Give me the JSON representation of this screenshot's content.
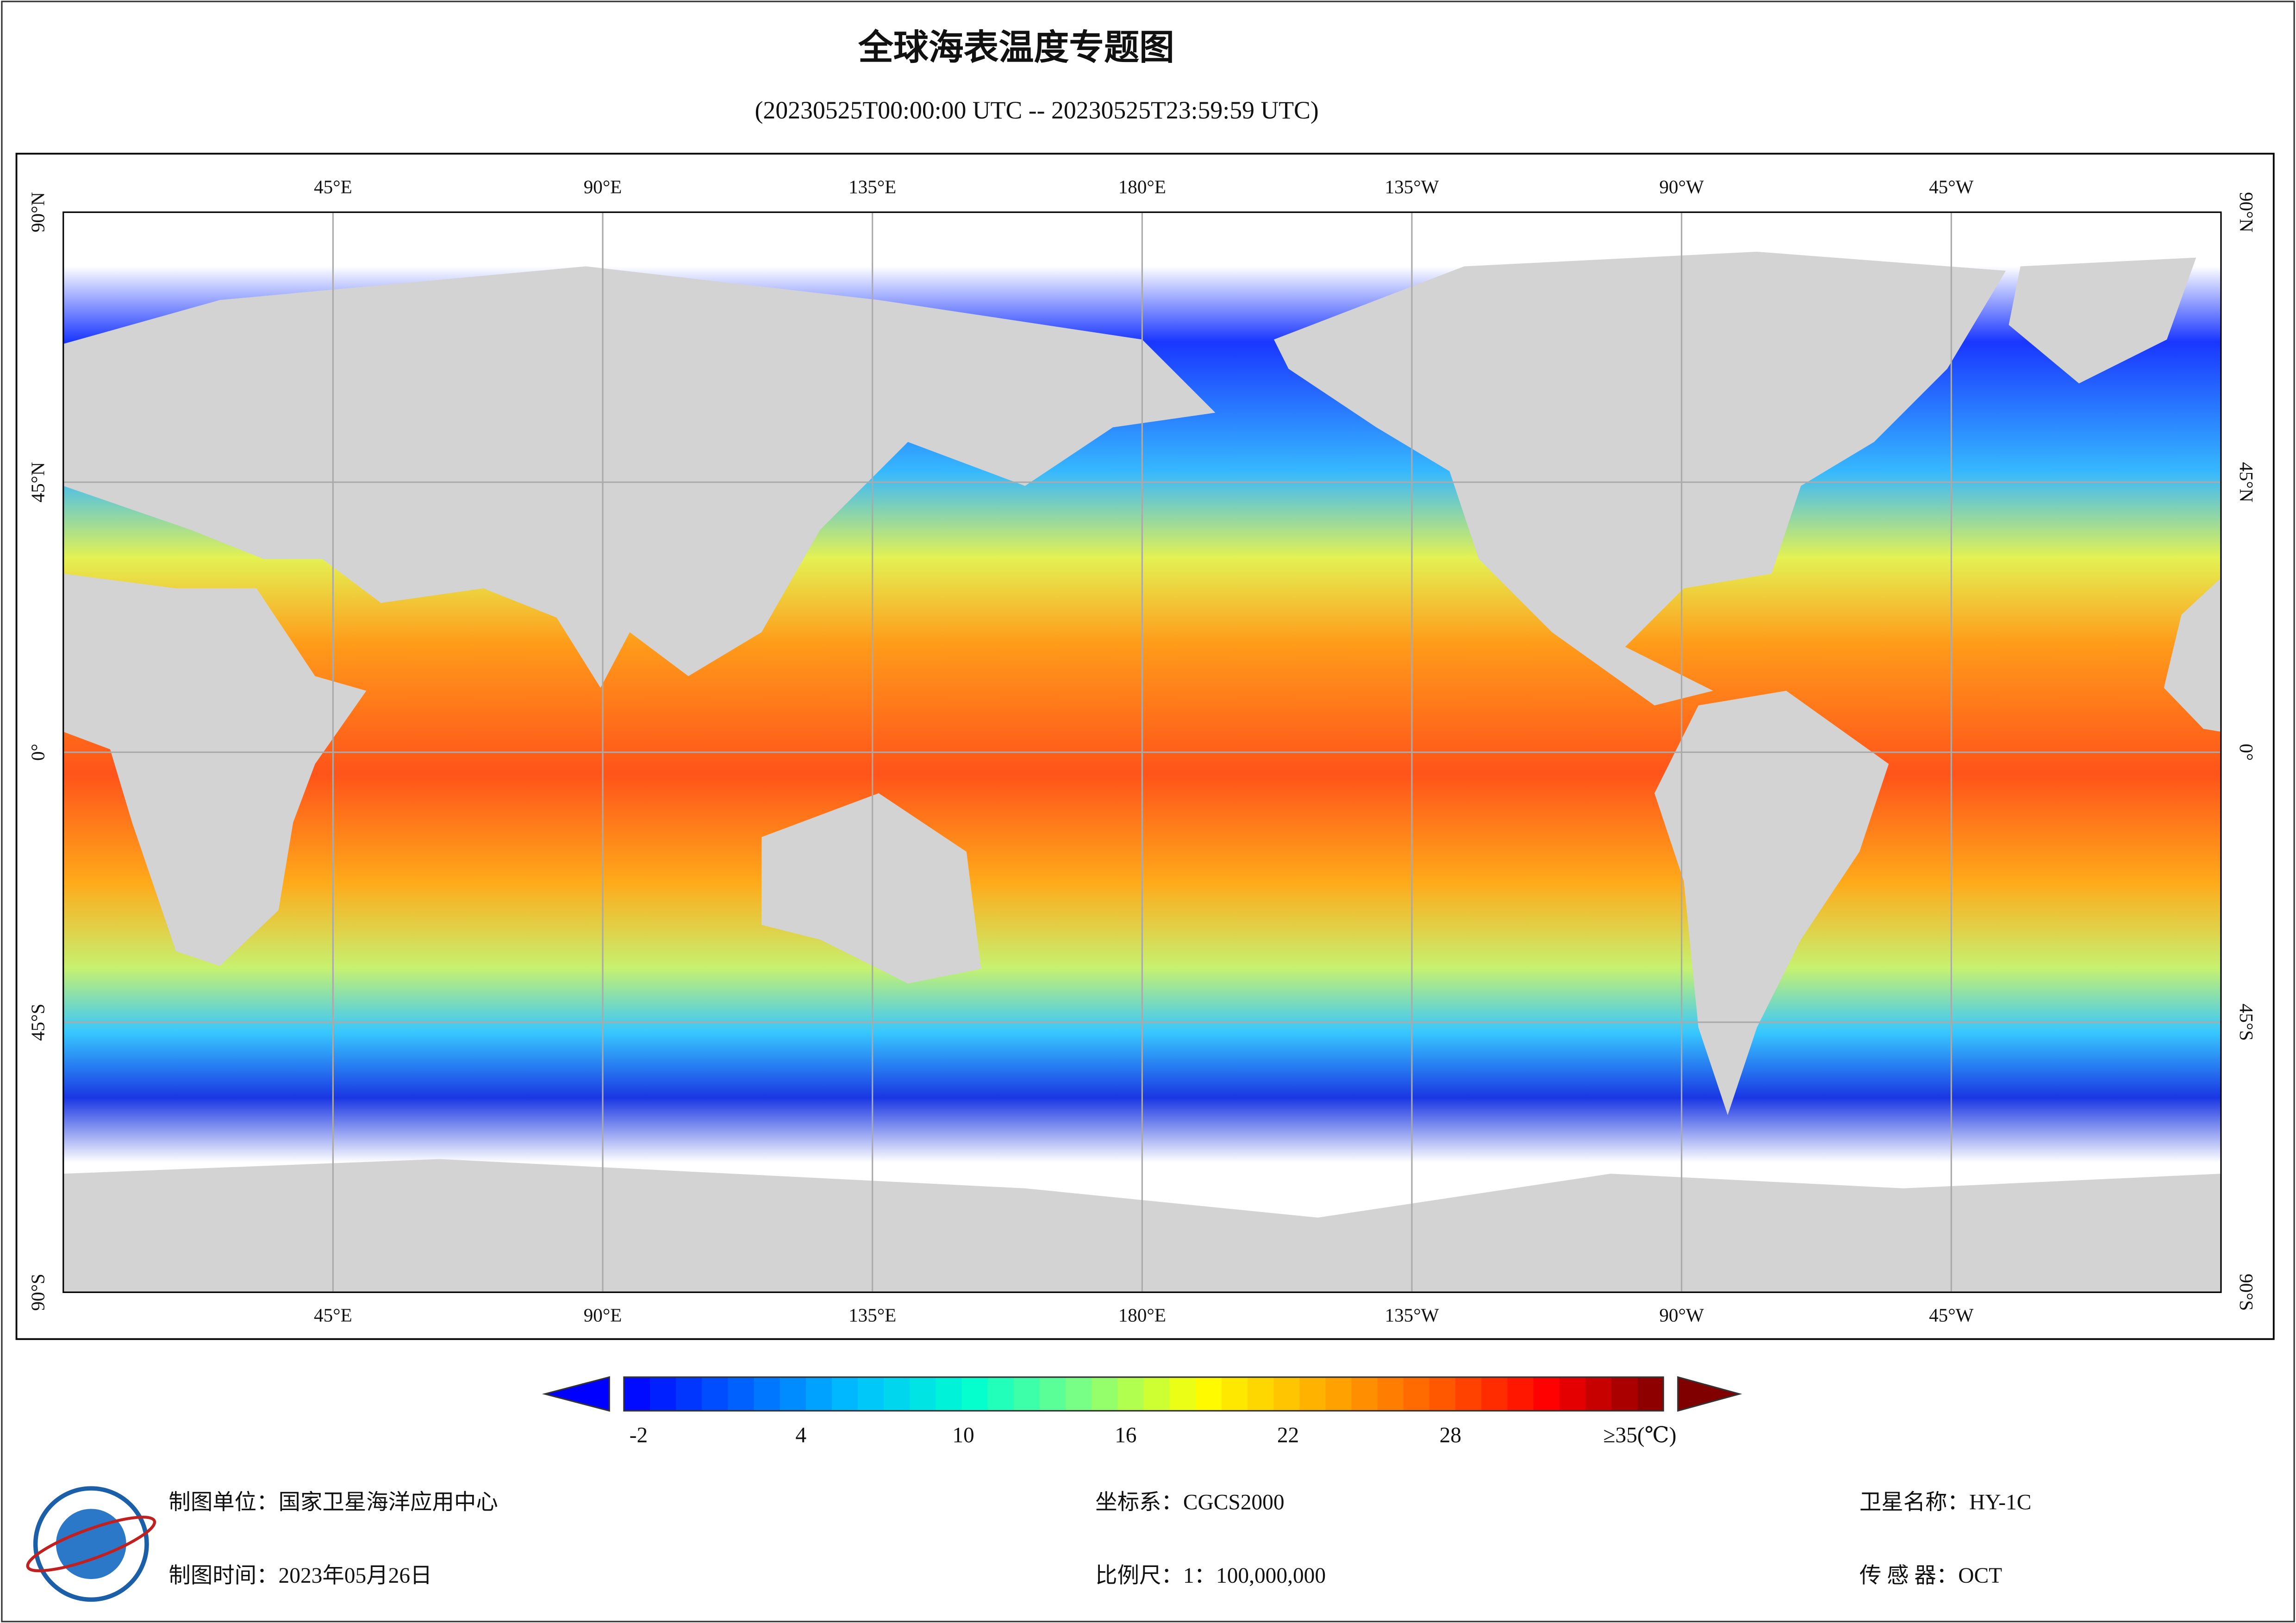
{
  "title": "全球海表温度专题图",
  "subtitle": "(20230525T00:00:00 UTC -- 20230525T23:59:59 UTC)",
  "map": {
    "xlim": [
      0,
      360
    ],
    "ylim": [
      -90,
      90
    ],
    "lon_ticks": [
      {
        "value": 45,
        "label": "45°E"
      },
      {
        "value": 90,
        "label": "90°E"
      },
      {
        "value": 135,
        "label": "135°E"
      },
      {
        "value": 180,
        "label": "180°E"
      },
      {
        "value": 225,
        "label": "135°W"
      },
      {
        "value": 270,
        "label": "90°W"
      },
      {
        "value": 315,
        "label": "45°W"
      }
    ],
    "lat_ticks": [
      {
        "value": 90,
        "label": "90°N"
      },
      {
        "value": 45,
        "label": "45°N"
      },
      {
        "value": 0,
        "label": "0°"
      },
      {
        "value": -45,
        "label": "45°S"
      },
      {
        "value": -90,
        "label": "90°S"
      }
    ],
    "grid": true
  },
  "colorbar": {
    "range": [
      -2,
      35
    ],
    "ticks": [
      -2,
      4,
      10,
      16,
      22,
      28,
      {
        "value": 35,
        "label": "≥35(℃)"
      }
    ],
    "colors": [
      "#0000ff",
      "#0060ff",
      "#00c0ff",
      "#00ffd0",
      "#80ff80",
      "#ffff00",
      "#ffb000",
      "#ff6000",
      "#ff0000",
      "#800000"
    ]
  },
  "footer": {
    "unit": "制图单位：国家卫星海洋应用中心",
    "date": "制图时间：2023年05月26日",
    "crs": "坐标系：CGCS2000",
    "scale": "比例尺：1：100,000,000",
    "satellite": "卫星名称：HY-1C",
    "sensor": "传 感 器：OCT"
  }
}
